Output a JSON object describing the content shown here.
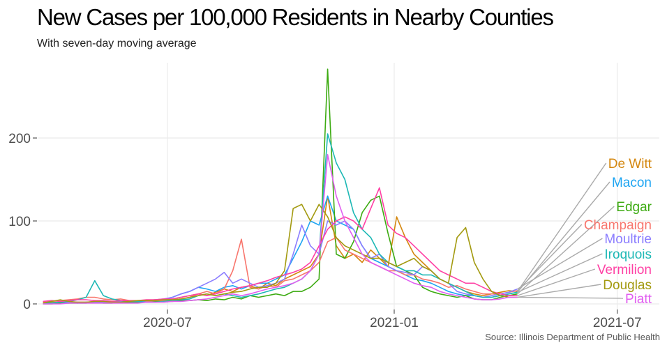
{
  "chart_data": {
    "type": "line",
    "title": "New Cases per 100,000 Residents in Nearby Counties",
    "subtitle": "With seven-day moving average",
    "caption": "Source: Illinois Department of Public Health",
    "xlabel": "",
    "ylabel": "",
    "ylim": [
      0,
      290
    ],
    "xlim": [
      "2020-03-15",
      "2021-07-20"
    ],
    "y_ticks": [
      0,
      100,
      200
    ],
    "y_tick_labels": [
      "0",
      "100",
      "200"
    ],
    "x_ticks": [
      "2020-07-01",
      "2021-01-01",
      "2021-07-01"
    ],
    "x_tick_labels": [
      "2020-07",
      "2021-01",
      "2021-07"
    ],
    "grid": true,
    "legend": "direct labels at right end with leader lines",
    "x": [
      "2020-03-22",
      "2020-03-29",
      "2020-04-05",
      "2020-04-12",
      "2020-04-19",
      "2020-04-26",
      "2020-05-03",
      "2020-05-10",
      "2020-05-17",
      "2020-05-24",
      "2020-05-31",
      "2020-06-07",
      "2020-06-14",
      "2020-06-21",
      "2020-06-28",
      "2020-07-05",
      "2020-07-12",
      "2020-07-19",
      "2020-07-26",
      "2020-08-02",
      "2020-08-09",
      "2020-08-16",
      "2020-08-23",
      "2020-08-30",
      "2020-09-06",
      "2020-09-13",
      "2020-09-20",
      "2020-09-27",
      "2020-10-04",
      "2020-10-11",
      "2020-10-18",
      "2020-10-25",
      "2020-11-01",
      "2020-11-08",
      "2020-11-15",
      "2020-11-22",
      "2020-11-29",
      "2020-12-06",
      "2020-12-13",
      "2020-12-20",
      "2020-12-27",
      "2021-01-03",
      "2021-01-10",
      "2021-01-17",
      "2021-01-24",
      "2021-01-31",
      "2021-02-07",
      "2021-02-14",
      "2021-02-21",
      "2021-02-28",
      "2021-03-07",
      "2021-03-14",
      "2021-03-21",
      "2021-03-28",
      "2021-04-04",
      "2021-04-11"
    ],
    "series": [
      {
        "name": "De Witt",
        "color": "#d4870f",
        "values": [
          1,
          2,
          2,
          1,
          2,
          2,
          3,
          2,
          2,
          3,
          2,
          3,
          4,
          5,
          4,
          6,
          8,
          10,
          12,
          10,
          14,
          18,
          15,
          20,
          22,
          18,
          25,
          22,
          30,
          35,
          40,
          45,
          60,
          130,
          70,
          55,
          60,
          50,
          65,
          55,
          45,
          105,
          80,
          60,
          50,
          40,
          30,
          25,
          20,
          15,
          12,
          10,
          12,
          14,
          16,
          15
        ]
      },
      {
        "name": "Macon",
        "color": "#1ea5f2",
        "values": [
          1,
          1,
          2,
          2,
          1,
          2,
          2,
          3,
          2,
          2,
          3,
          3,
          3,
          4,
          5,
          8,
          12,
          15,
          20,
          18,
          15,
          20,
          22,
          18,
          22,
          25,
          25,
          30,
          35,
          55,
          75,
          100,
          95,
          130,
          100,
          95,
          90,
          70,
          55,
          50,
          45,
          40,
          35,
          30,
          28,
          25,
          20,
          15,
          12,
          10,
          10,
          8,
          8,
          10,
          12,
          14
        ]
      },
      {
        "name": "Edgar",
        "color": "#3dab12",
        "values": [
          0,
          0,
          1,
          1,
          1,
          1,
          2,
          1,
          1,
          2,
          2,
          2,
          2,
          3,
          3,
          3,
          4,
          4,
          5,
          4,
          6,
          5,
          8,
          6,
          10,
          8,
          10,
          12,
          10,
          15,
          15,
          20,
          30,
          283,
          60,
          55,
          75,
          110,
          125,
          130,
          85,
          45,
          40,
          35,
          20,
          15,
          12,
          10,
          8,
          10,
          6,
          5,
          5,
          8,
          10,
          12
        ]
      },
      {
        "name": "Champaign",
        "color": "#f8766d",
        "values": [
          2,
          3,
          4,
          5,
          6,
          8,
          8,
          6,
          5,
          6,
          4,
          3,
          3,
          4,
          4,
          5,
          6,
          8,
          12,
          15,
          12,
          18,
          40,
          78,
          20,
          18,
          22,
          20,
          28,
          30,
          35,
          40,
          50,
          75,
          80,
          65,
          60,
          55,
          50,
          45,
          40,
          40,
          35,
          35,
          30,
          28,
          25,
          20,
          22,
          18,
          15,
          12,
          12,
          12,
          14,
          16
        ]
      },
      {
        "name": "Moultrie",
        "color": "#8b7dff",
        "values": [
          1,
          1,
          2,
          2,
          2,
          1,
          2,
          2,
          2,
          3,
          3,
          3,
          4,
          5,
          6,
          8,
          12,
          15,
          20,
          25,
          30,
          38,
          25,
          30,
          25,
          20,
          22,
          25,
          30,
          60,
          95,
          70,
          60,
          100,
          95,
          100,
          90,
          70,
          55,
          60,
          45,
          40,
          38,
          35,
          45,
          40,
          30,
          25,
          15,
          12,
          10,
          8,
          10,
          12,
          14,
          18
        ]
      },
      {
        "name": "Iroquois",
        "color": "#1db8b5",
        "values": [
          1,
          1,
          2,
          3,
          5,
          8,
          28,
          10,
          6,
          4,
          3,
          3,
          2,
          2,
          3,
          4,
          5,
          6,
          10,
          12,
          10,
          12,
          10,
          8,
          10,
          12,
          15,
          18,
          20,
          25,
          30,
          40,
          60,
          205,
          170,
          150,
          110,
          90,
          80,
          60,
          50,
          45,
          40,
          40,
          35,
          35,
          30,
          25,
          20,
          15,
          10,
          8,
          8,
          10,
          12,
          14
        ]
      },
      {
        "name": "Vermilion",
        "color": "#ff40a4",
        "values": [
          3,
          4,
          3,
          4,
          5,
          5,
          4,
          4,
          3,
          4,
          4,
          4,
          5,
          5,
          6,
          6,
          8,
          10,
          12,
          10,
          12,
          15,
          18,
          20,
          22,
          25,
          28,
          32,
          35,
          38,
          42,
          50,
          70,
          90,
          100,
          105,
          100,
          90,
          115,
          140,
          95,
          85,
          80,
          70,
          60,
          50,
          40,
          35,
          30,
          25,
          25,
          20,
          15,
          12,
          10,
          10
        ]
      },
      {
        "name": "Douglas",
        "color": "#a39a10",
        "values": [
          1,
          3,
          5,
          3,
          2,
          2,
          3,
          3,
          2,
          2,
          3,
          4,
          4,
          4,
          5,
          5,
          6,
          8,
          10,
          12,
          10,
          12,
          14,
          15,
          18,
          20,
          20,
          25,
          40,
          115,
          120,
          100,
          120,
          105,
          80,
          70,
          65,
          60,
          55,
          55,
          50,
          45,
          50,
          55,
          45,
          40,
          30,
          25,
          80,
          92,
          50,
          30,
          15,
          10,
          8,
          8
        ]
      },
      {
        "name": "Piatt",
        "color": "#e15ef0",
        "values": [
          0,
          0,
          0,
          1,
          1,
          1,
          1,
          1,
          1,
          1,
          1,
          1,
          2,
          2,
          2,
          3,
          3,
          4,
          5,
          6,
          8,
          10,
          12,
          10,
          12,
          15,
          18,
          20,
          22,
          25,
          30,
          40,
          60,
          180,
          130,
          100,
          80,
          60,
          50,
          45,
          40,
          35,
          30,
          25,
          22,
          20,
          15,
          12,
          10,
          8,
          6,
          5,
          5,
          6,
          8,
          8
        ]
      }
    ]
  }
}
